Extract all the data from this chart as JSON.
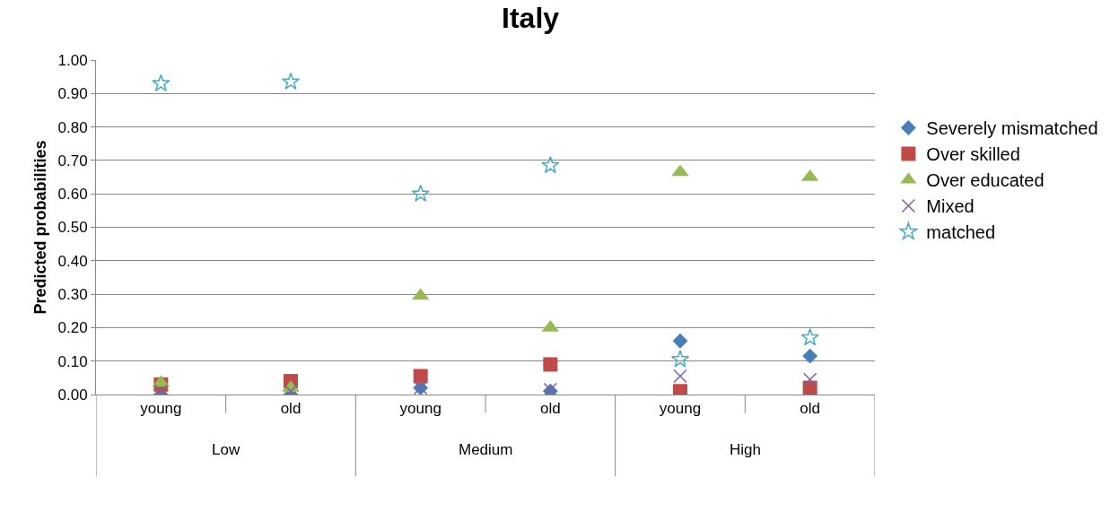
{
  "chart_data": {
    "type": "scatter",
    "title": "Italy",
    "ylabel": "Predicted probabilities",
    "categories": [
      "young",
      "old",
      "young",
      "old",
      "young",
      "old"
    ],
    "annotations": [
      "Low",
      "Medium",
      "High"
    ],
    "ylim": [
      0,
      1
    ],
    "yticks": [
      {
        "value": 0,
        "label": "0.00"
      },
      {
        "value": 0.1,
        "label": "0.10"
      },
      {
        "value": 0.2,
        "label": "0.20"
      },
      {
        "value": 0.3,
        "label": "0.30"
      },
      {
        "value": 0.4,
        "label": "0.40"
      },
      {
        "value": 0.5,
        "label": "0.50"
      },
      {
        "value": 0.6,
        "label": "0.60"
      },
      {
        "value": 0.7,
        "label": "0.70"
      },
      {
        "value": 0.8,
        "label": "0.80"
      },
      {
        "value": 0.9,
        "label": "0.90"
      },
      {
        "value": 1,
        "label": "1.00"
      }
    ],
    "grid": "y",
    "legend": "right",
    "series": [
      {
        "name": "Severely mismatched",
        "color": "#4a7ebb",
        "marker": "diamond",
        "values": [
          0.0,
          0.0,
          0.02,
          0.01,
          0.16,
          0.115
        ]
      },
      {
        "name": "Over skilled",
        "color": "#be4b48",
        "marker": "square",
        "values": [
          0.03,
          0.04,
          0.055,
          0.09,
          0.01,
          0.02
        ]
      },
      {
        "name": "Over educated",
        "color": "#98b954",
        "marker": "triangle",
        "values": [
          0.035,
          0.02,
          0.295,
          0.2,
          0.665,
          0.65
        ]
      },
      {
        "name": "Mixed",
        "color": "#7d60a0",
        "marker": "cross",
        "values": [
          0.01,
          0.01,
          0.02,
          0.015,
          0.055,
          0.045
        ]
      },
      {
        "name": "matched",
        "color": "#46aac5",
        "marker": "star",
        "values": [
          0.93,
          0.935,
          0.6,
          0.685,
          0.105,
          0.17
        ]
      }
    ]
  }
}
